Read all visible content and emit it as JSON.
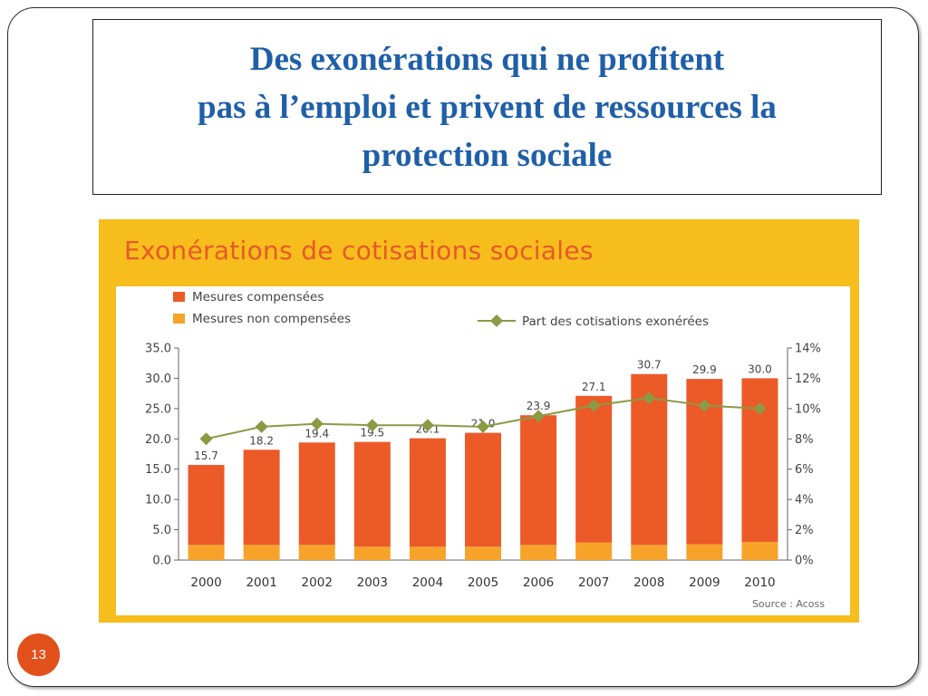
{
  "slide": {
    "title_lines": [
      "Des exonérations qui ne profitent",
      "pas à l’emploi et privent de ressources la",
      "protection sociale"
    ],
    "page_number": "13"
  },
  "colors": {
    "title_blue": "#1f5fa8",
    "panel_yellow": "#f7bd1c",
    "chart_title_orange": "#e7592a",
    "compensated": "#ec5a28",
    "non_compensated": "#f7a32a",
    "line_green": "#8a9a45",
    "badge": "#e2501b"
  },
  "chart_data": {
    "type": "bar",
    "title": "Exonérations de cotisations sociales",
    "source": "Source : Acoss",
    "categories": [
      "2000",
      "2001",
      "2002",
      "2003",
      "2004",
      "2005",
      "2006",
      "2007",
      "2008",
      "2009",
      "2010"
    ],
    "totals_labels": [
      "15.7",
      "18.2",
      "19.4",
      "19.5",
      "20.1",
      "21.0",
      "23.9",
      "27.1",
      "30.7",
      "29.9",
      "30.0"
    ],
    "series": [
      {
        "name": "Mesures compensées",
        "values": [
          13.2,
          15.7,
          16.9,
          17.3,
          17.9,
          18.8,
          21.4,
          24.2,
          28.2,
          27.3,
          27.0
        ]
      },
      {
        "name": "Mesures non compensées",
        "values": [
          2.5,
          2.5,
          2.5,
          2.2,
          2.2,
          2.2,
          2.5,
          2.9,
          2.5,
          2.6,
          3.0
        ]
      }
    ],
    "line_series": {
      "name": "Part des cotisations exonérées",
      "values": [
        8.0,
        8.8,
        9.0,
        8.9,
        8.9,
        8.8,
        9.5,
        10.2,
        10.7,
        10.2,
        10.0
      ],
      "axis": "right"
    },
    "left_axis": {
      "ylim": [
        0,
        35
      ],
      "ticks": [
        "0.0",
        "5.0",
        "10.0",
        "15.0",
        "20.0",
        "25.0",
        "30.0",
        "35.0"
      ]
    },
    "right_axis": {
      "ylim": [
        0,
        14
      ],
      "ticks": [
        "0%",
        "2%",
        "4%",
        "6%",
        "8%",
        "10%",
        "12%",
        "14%"
      ]
    },
    "legend_position": "top-left"
  }
}
